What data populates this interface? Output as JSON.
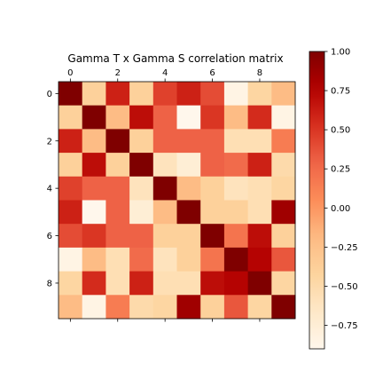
{
  "chart_data": {
    "type": "heatmap",
    "title": "Gamma T x Gamma S correlation matrix",
    "x_tick_labels": [
      "0",
      "2",
      "4",
      "6",
      "8"
    ],
    "x_tick_positions": [
      0,
      2,
      4,
      6,
      8
    ],
    "y_tick_labels": [
      "0",
      "2",
      "4",
      "6",
      "8"
    ],
    "y_tick_positions": [
      0,
      2,
      4,
      6,
      8
    ],
    "x_tick_location": "top",
    "colormap": "OrRd",
    "colorbar": {
      "location": "right",
      "vmin": -0.9,
      "vmax": 1.0,
      "tick_labels": [
        "1.00",
        "0.75",
        "0.50",
        "0.25",
        "0.00",
        "−0.25",
        "−0.50",
        "−0.75"
      ],
      "tick_values": [
        1.0,
        0.75,
        0.5,
        0.25,
        0.0,
        -0.25,
        -0.5,
        -0.75
      ]
    },
    "rows": 10,
    "cols": 10,
    "values": [
      [
        1.0,
        -0.4,
        0.6,
        -0.4,
        0.45,
        0.6,
        0.4,
        -0.85,
        -0.45,
        -0.2
      ],
      [
        -0.4,
        1.0,
        -0.2,
        0.7,
        0.3,
        -0.9,
        0.5,
        -0.2,
        0.55,
        -0.85
      ],
      [
        0.6,
        -0.2,
        1.0,
        -0.4,
        0.3,
        0.3,
        0.3,
        -0.55,
        -0.55,
        0.15
      ],
      [
        -0.4,
        0.7,
        -0.4,
        1.0,
        -0.6,
        -0.75,
        0.3,
        0.25,
        0.6,
        -0.5
      ],
      [
        0.45,
        0.3,
        0.3,
        -0.6,
        1.0,
        -0.2,
        -0.4,
        -0.6,
        -0.55,
        -0.45
      ],
      [
        0.6,
        -0.9,
        0.3,
        -0.75,
        -0.2,
        1.0,
        -0.4,
        -0.4,
        -0.55,
        0.85
      ],
      [
        0.4,
        0.5,
        0.3,
        0.3,
        -0.4,
        -0.4,
        1.0,
        0.2,
        0.7,
        -0.4
      ],
      [
        -0.85,
        -0.2,
        -0.55,
        0.25,
        -0.6,
        -0.4,
        0.2,
        1.0,
        0.75,
        0.35
      ],
      [
        -0.45,
        0.55,
        -0.55,
        0.6,
        -0.55,
        -0.55,
        0.7,
        0.75,
        1.0,
        -0.45
      ],
      [
        -0.2,
        -0.85,
        0.15,
        -0.5,
        -0.45,
        0.85,
        -0.4,
        0.35,
        -0.45,
        1.0
      ]
    ]
  }
}
